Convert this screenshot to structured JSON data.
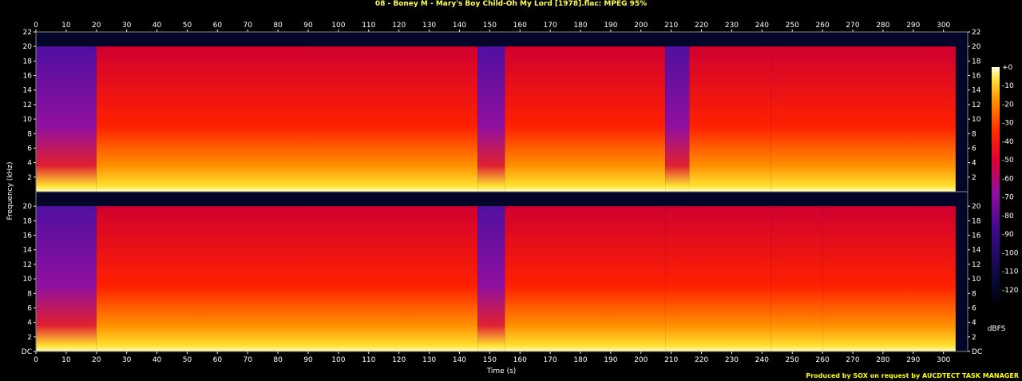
{
  "title": "08 - Boney M - Mary's Boy Child-Oh My Lord [1978].flac: MPEG 95%",
  "footer": "Produced by SOX on request by AUCDTECT TASK MANAGER",
  "colors": {
    "title": "#ffff55",
    "footer": "#ffff00"
  },
  "chart_data": {
    "type": "heatmap",
    "title": "08 - Boney M - Mary's Boy Child-Oh My Lord [1978].flac: MPEG 95%",
    "xlabel": "Time (s)",
    "ylabel": "Frequency (kHz)",
    "xlim": [
      0,
      308
    ],
    "ylim": [
      0,
      22
    ],
    "x_ticks": [
      0,
      10,
      20,
      30,
      40,
      50,
      60,
      70,
      80,
      90,
      100,
      110,
      120,
      130,
      140,
      150,
      160,
      170,
      180,
      190,
      200,
      210,
      220,
      230,
      240,
      250,
      260,
      270,
      280,
      290,
      300
    ],
    "x_tick_labels": [
      "0",
      "10",
      "20",
      "30",
      "40",
      "50",
      "60",
      "70",
      "80",
      "90",
      "100",
      "110",
      "120",
      "130",
      "140",
      "150",
      "160",
      "170",
      "180",
      "190",
      "200",
      "210",
      "220",
      "230",
      "240",
      "250",
      "260",
      "270",
      "280",
      "290",
      "300"
    ],
    "channels": [
      {
        "y_ticks": [
          2,
          4,
          6,
          8,
          10,
          12,
          14,
          16,
          18,
          20,
          22
        ],
        "y_tick_labels": [
          "2",
          "4",
          "6",
          "8",
          "10",
          "12",
          "14",
          "16",
          "18",
          "20",
          "22"
        ],
        "segments": [
          {
            "start": 0,
            "end": 20,
            "level": 0.25,
            "cutoff": 20
          },
          {
            "start": 20,
            "end": 146,
            "level": 0.75,
            "cutoff": 20
          },
          {
            "start": 146,
            "end": 155,
            "level": 0.35,
            "cutoff": 20
          },
          {
            "start": 155,
            "end": 208,
            "level": 0.72,
            "cutoff": 20
          },
          {
            "start": 208,
            "end": 216,
            "level": 0.45,
            "cutoff": 20
          },
          {
            "start": 216,
            "end": 243,
            "level": 0.68,
            "cutoff": 20
          },
          {
            "start": 243,
            "end": 304,
            "level": 0.65,
            "cutoff": 20
          }
        ]
      },
      {
        "y_ticks": [
          0,
          2,
          4,
          6,
          8,
          10,
          12,
          14,
          16,
          18,
          20
        ],
        "y_tick_labels": [
          "DC",
          "2",
          "4",
          "6",
          "8",
          "10",
          "12",
          "14",
          "16",
          "18",
          "20"
        ],
        "segments": [
          {
            "start": 0,
            "end": 20,
            "level": 0.25,
            "cutoff": 20
          },
          {
            "start": 20,
            "end": 146,
            "level": 0.78,
            "cutoff": 20
          },
          {
            "start": 146,
            "end": 155,
            "level": 0.35,
            "cutoff": 20
          },
          {
            "start": 155,
            "end": 208,
            "level": 0.74,
            "cutoff": 20
          },
          {
            "start": 208,
            "end": 243,
            "level": 0.55,
            "cutoff": 20
          },
          {
            "start": 243,
            "end": 260,
            "level": 0.6,
            "cutoff": 20
          },
          {
            "start": 260,
            "end": 304,
            "level": 0.7,
            "cutoff": 20
          }
        ]
      }
    ],
    "colorbar": {
      "label": "dBFS",
      "range": [
        -130,
        0
      ],
      "ticks": [
        0,
        -10,
        -20,
        -30,
        -40,
        -50,
        -60,
        -70,
        -80,
        -90,
        -100,
        -110,
        -120
      ],
      "tick_labels": [
        "+0",
        "-10",
        "-20",
        "-30",
        "-40",
        "-50",
        "-60",
        "-70",
        "-80",
        "-90",
        "-100",
        "-110",
        "-120"
      ]
    }
  }
}
